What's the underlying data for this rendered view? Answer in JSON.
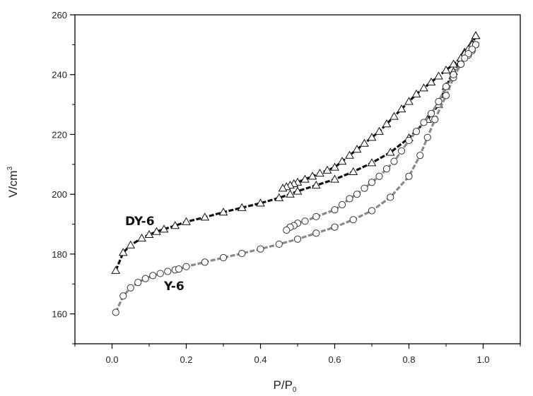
{
  "chart_data": {
    "type": "line",
    "xlabel": "P/P",
    "xlabel_sub": "0",
    "ylabel": "V/cm",
    "ylabel_sup": "3",
    "xlim": [
      -0.1,
      1.1
    ],
    "ylim": [
      150,
      260
    ],
    "x_ticks": [
      0.0,
      0.2,
      0.4,
      0.6,
      0.8,
      1.0
    ],
    "x_tick_labels": [
      "0.0",
      "0.2",
      "0.4",
      "0.6",
      "0.8",
      "1.0"
    ],
    "y_ticks": [
      160,
      180,
      200,
      220,
      240,
      260
    ],
    "y_tick_labels": [
      "160",
      "180",
      "200",
      "220",
      "240",
      "260"
    ],
    "grid": false,
    "legend": "none",
    "series": [
      {
        "name": "DY-6",
        "marker": "triangle",
        "line_color": "#111111",
        "branches": [
          {
            "x": [
              0.01,
              0.03,
              0.05,
              0.08,
              0.1,
              0.12,
              0.14,
              0.17,
              0.2,
              0.25,
              0.3,
              0.35,
              0.4,
              0.45,
              0.48,
              0.5,
              0.55,
              0.6,
              0.65,
              0.7,
              0.75,
              0.8,
              0.85,
              0.88,
              0.9,
              0.92,
              0.94,
              0.95,
              0.97,
              0.98
            ],
            "y": [
              174.5,
              180.5,
              183.0,
              185.3,
              186.5,
              187.5,
              188.3,
              189.5,
              190.8,
              192.3,
              194.0,
              195.5,
              197.0,
              198.8,
              200.0,
              201.0,
              203.0,
              205.0,
              207.5,
              210.5,
              214.0,
              218.8,
              225.0,
              230.0,
              236.0,
              241.0,
              245.5,
              247.5,
              250.5,
              253.0
            ]
          },
          {
            "x": [
              0.98,
              0.97,
              0.96,
              0.95,
              0.94,
              0.92,
              0.9,
              0.88,
              0.86,
              0.84,
              0.82,
              0.8,
              0.78,
              0.76,
              0.74,
              0.72,
              0.7,
              0.68,
              0.66,
              0.64,
              0.62,
              0.6,
              0.58,
              0.56,
              0.54,
              0.52,
              0.5,
              0.49,
              0.48,
              0.47,
              0.46
            ],
            "y": [
              253.0,
              250.0,
              248.5,
              247.0,
              245.5,
              243.5,
              241.5,
              239.5,
              237.5,
              235.5,
              233.5,
              231.0,
              228.5,
              226.0,
              223.5,
              221.0,
              219.0,
              217.0,
              215.0,
              213.0,
              211.0,
              209.0,
              208.0,
              207.0,
              206.0,
              205.0,
              204.0,
              203.5,
              203.0,
              202.5,
              202.0
            ]
          }
        ]
      },
      {
        "name": "Y-6",
        "marker": "circle",
        "line_color": "#8a8a8a",
        "branches": [
          {
            "x": [
              0.01,
              0.03,
              0.05,
              0.07,
              0.09,
              0.11,
              0.13,
              0.15,
              0.17,
              0.18,
              0.2,
              0.25,
              0.3,
              0.35,
              0.4,
              0.45,
              0.5,
              0.55,
              0.6,
              0.65,
              0.7,
              0.75,
              0.8,
              0.83,
              0.85,
              0.87,
              0.9,
              0.92,
              0.94,
              0.96,
              0.97,
              0.98
            ],
            "y": [
              160.5,
              166.0,
              168.7,
              170.5,
              171.8,
              172.8,
              173.5,
              174.2,
              174.7,
              175.0,
              175.8,
              177.3,
              178.8,
              180.2,
              181.7,
              183.3,
              185.0,
              187.0,
              189.0,
              191.5,
              194.5,
              199.0,
              206.0,
              213.0,
              219.0,
              225.0,
              233.0,
              239.0,
              243.5,
              246.5,
              248.0,
              250.0
            ]
          },
          {
            "x": [
              0.98,
              0.97,
              0.96,
              0.95,
              0.94,
              0.92,
              0.9,
              0.88,
              0.86,
              0.84,
              0.82,
              0.8,
              0.78,
              0.76,
              0.74,
              0.72,
              0.7,
              0.68,
              0.66,
              0.64,
              0.62,
              0.6,
              0.55,
              0.52,
              0.5,
              0.49,
              0.48,
              0.47
            ],
            "y": [
              250.0,
              248.5,
              247.0,
              245.5,
              243.5,
              240.0,
              236.0,
              231.0,
              227.0,
              224.0,
              221.0,
              218.0,
              214.5,
              211.0,
              208.5,
              206.0,
              204.0,
              202.0,
              200.0,
              198.5,
              196.5,
              194.8,
              192.5,
              191.0,
              190.3,
              189.5,
              189.0,
              188.0
            ]
          }
        ]
      }
    ]
  }
}
